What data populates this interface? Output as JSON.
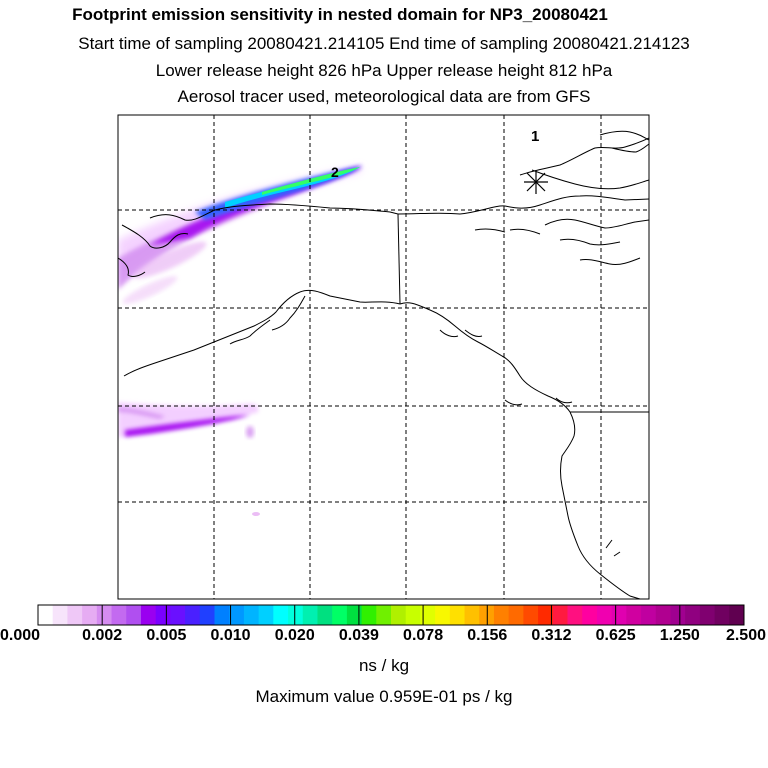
{
  "header": {
    "title": "Footprint emission sensitivity in nested domain for NP3_20080421",
    "sampling_line": "Start time of sampling 20080421.214105     End time of sampling 20080421.214123",
    "release_line": "Lower release height  826 hPa        Upper release height  812 hPa",
    "tracer_line": "Aerosol tracer used, meteorological data are from GFS"
  },
  "map": {
    "markers": [
      {
        "label": "1",
        "icon": "asterisk-icon"
      },
      {
        "label": "2",
        "icon": "text-marker"
      }
    ],
    "colors": {
      "coastline": "#000000",
      "grid": "#000000",
      "plume_core": "#33ff66",
      "plume_mid": "#00d0ff",
      "plume_outer": "#a000f0",
      "plume_faint": "#f0c0ff"
    }
  },
  "colorbar": {
    "tick_labels": [
      "0.000",
      "0.002",
      "0.005",
      "0.010",
      "0.020",
      "0.039",
      "0.078",
      "0.156",
      "0.312",
      "0.625",
      "1.250",
      "2.500"
    ],
    "colors": [
      "#ffffff",
      "#f7e4fb",
      "#efc8f7",
      "#e6acf3",
      "#d58cf0",
      "#c36af0",
      "#b04ff0",
      "#9a00f0",
      "#7a00ff",
      "#6a10ff",
      "#4a20ff",
      "#2040ff",
      "#0080ff",
      "#0098ff",
      "#00b4ff",
      "#00d0ff",
      "#00ffff",
      "#00ffdd",
      "#00f0b0",
      "#00e080",
      "#00ff66",
      "#00e040",
      "#30f000",
      "#70f000",
      "#b0f000",
      "#c8ff00",
      "#e0ff00",
      "#f8f800",
      "#ffe000",
      "#ffc000",
      "#ffa000",
      "#ff8000",
      "#ff6a00",
      "#ff4a00",
      "#ff2a00",
      "#ff1a40",
      "#ff1080",
      "#ff00a0",
      "#f000b0",
      "#e000b0",
      "#d000a0",
      "#c000a0",
      "#b00090",
      "#a00090",
      "#900080",
      "#800070",
      "#700060",
      "#600050"
    ],
    "units": "ns / kg",
    "maximum": "Maximum value  0.959E-01 ps / kg"
  }
}
